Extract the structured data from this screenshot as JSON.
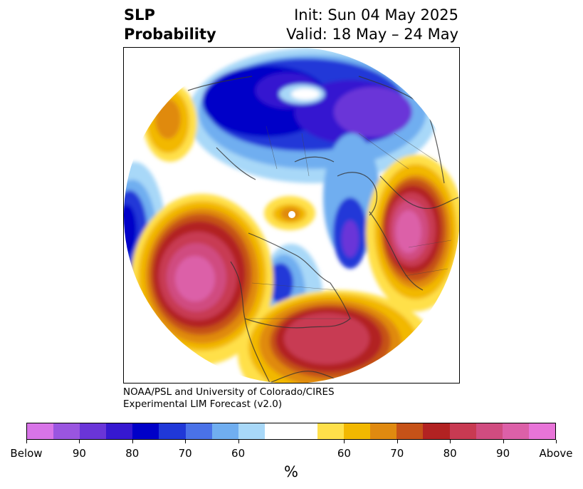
{
  "title": {
    "left_line1": "SLP",
    "left_line2": "Probability",
    "right_line1": "Init: Sun 04 May 2025",
    "right_line2": "Valid: 18 May – 24 May"
  },
  "credit": {
    "line1": "NOAA/PSL and University of Colorado/CIRES",
    "line2": "Experimental LIM Forecast (v2.0)"
  },
  "colorbar": {
    "unit_label": "%",
    "below_colors": [
      "#d874e8",
      "#9a55e0",
      "#6a35d8",
      "#3618d0",
      "#0000c8",
      "#2038d8",
      "#4a72e8",
      "#70aef0",
      "#a8d8f8"
    ],
    "neutral_color": "#ffffff",
    "above_colors": [
      "#ffe04a",
      "#f2b800",
      "#e08a10",
      "#c65218",
      "#b22222",
      "#c83a52",
      "#d04c80",
      "#dc60a8",
      "#e874d8"
    ],
    "tick_labels": [
      "Below",
      "90",
      "80",
      "70",
      "60",
      "60",
      "70",
      "80",
      "90",
      "Above"
    ]
  },
  "map": {
    "projection": "north-polar-stereographic",
    "field": "sea-level-pressure-probability",
    "features": [
      "below-normal-arctic-eurasia",
      "above-normal-north-pacific",
      "above-normal-eastern-north-america",
      "above-normal-western-russia",
      "below-normal-central-north-america"
    ]
  }
}
